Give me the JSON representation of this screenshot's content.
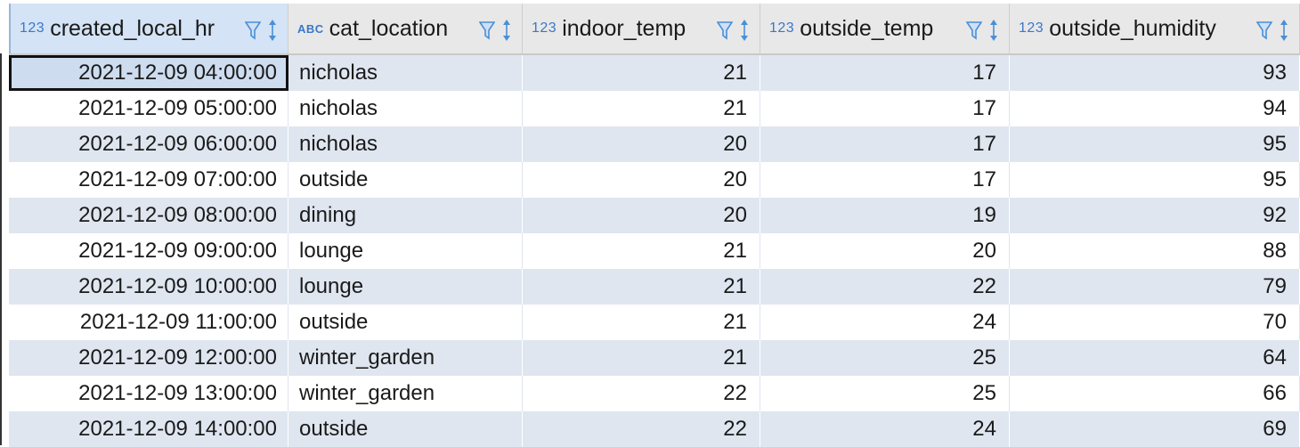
{
  "columns": [
    {
      "type": "123",
      "name": "created_local_hr"
    },
    {
      "type": "ABC",
      "name": "cat_location"
    },
    {
      "type": "123",
      "name": "indoor_temp"
    },
    {
      "type": "123",
      "name": "outside_temp"
    },
    {
      "type": "123",
      "name": "outside_humidity"
    }
  ],
  "rows": [
    [
      "2021-12-09 04:00:00",
      "nicholas",
      "21",
      "17",
      "93"
    ],
    [
      "2021-12-09 05:00:00",
      "nicholas",
      "21",
      "17",
      "94"
    ],
    [
      "2021-12-09 06:00:00",
      "nicholas",
      "20",
      "17",
      "95"
    ],
    [
      "2021-12-09 07:00:00",
      "outside",
      "20",
      "17",
      "95"
    ],
    [
      "2021-12-09 08:00:00",
      "dining",
      "20",
      "19",
      "92"
    ],
    [
      "2021-12-09 09:00:00",
      "lounge",
      "21",
      "20",
      "88"
    ],
    [
      "2021-12-09 10:00:00",
      "lounge",
      "21",
      "22",
      "79"
    ],
    [
      "2021-12-09 11:00:00",
      "outside",
      "21",
      "24",
      "70"
    ],
    [
      "2021-12-09 12:00:00",
      "winter_garden",
      "21",
      "25",
      "64"
    ],
    [
      "2021-12-09 13:00:00",
      "winter_garden",
      "22",
      "25",
      "66"
    ],
    [
      "2021-12-09 14:00:00",
      "outside",
      "22",
      "24",
      "69"
    ]
  ],
  "colors": {
    "header_bg": "#e8e8e8",
    "alt_row_bg": "#dfe6f0",
    "type_tag": "#3a78c8",
    "filter_icon": "#4a8fd6"
  },
  "icons": {
    "filter": "filter-funnel-icon",
    "sort": "sort-arrows-icon"
  }
}
